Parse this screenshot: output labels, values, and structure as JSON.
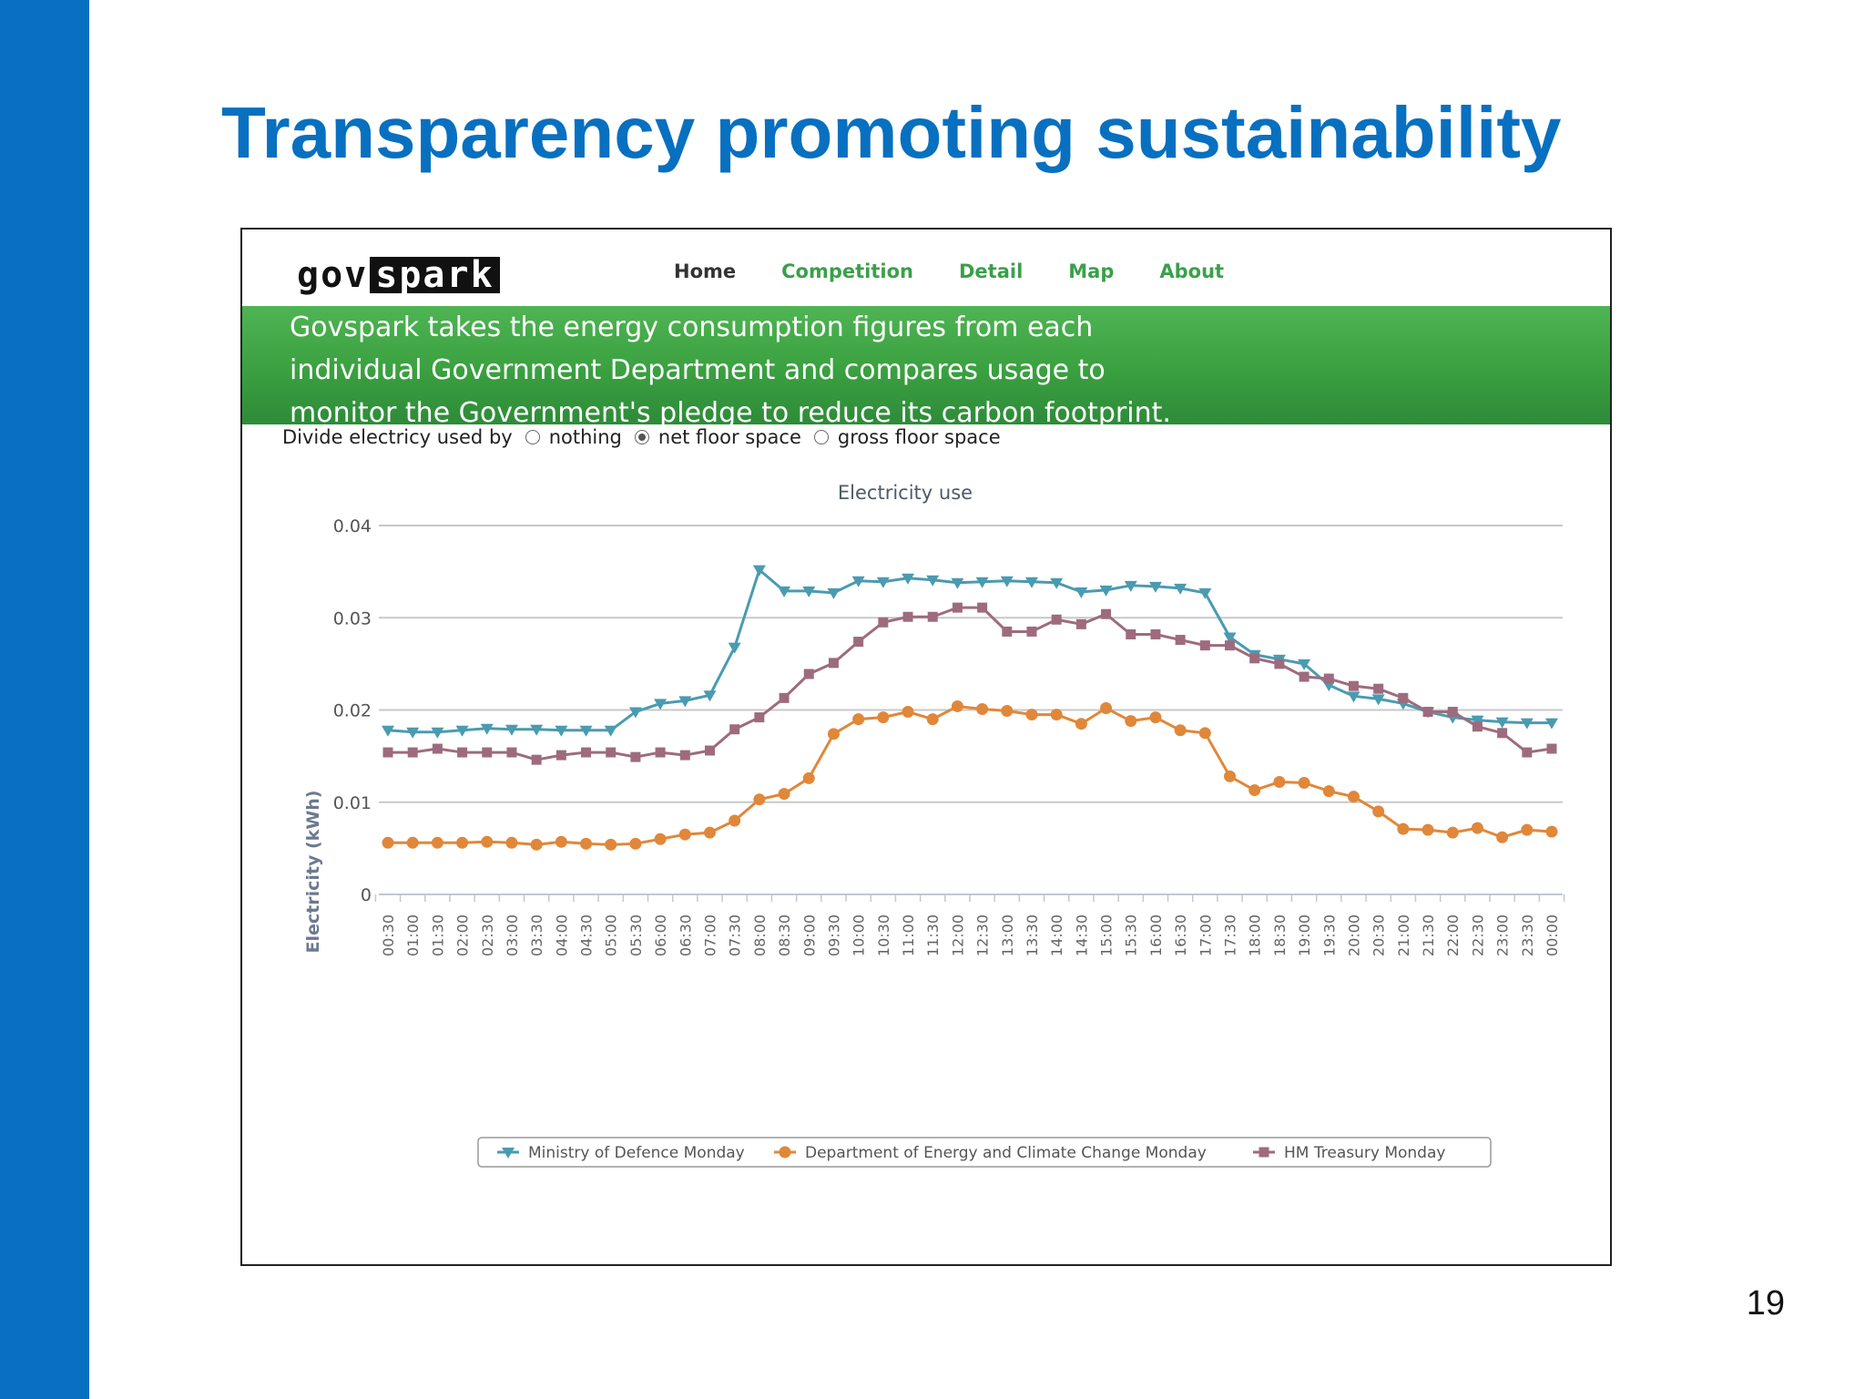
{
  "slide": {
    "title": "Transparency promoting sustainability",
    "page_number": "19"
  },
  "logo": {
    "part1": "gov",
    "part2": "spark"
  },
  "nav": [
    {
      "label": "Home",
      "active": true
    },
    {
      "label": "Competition",
      "active": false
    },
    {
      "label": "Detail",
      "active": false
    },
    {
      "label": "Map",
      "active": false
    },
    {
      "label": "About",
      "active": false
    }
  ],
  "banner": {
    "lines": [
      "Govspark takes the energy consumption figures from each",
      "individual Government Department and compares usage to",
      "monitor the Government's pledge to reduce its carbon footprint."
    ]
  },
  "divide": {
    "label": "Divide electricy used by",
    "options": [
      {
        "label": "nothing",
        "checked": false
      },
      {
        "label": "net floor space",
        "checked": true
      },
      {
        "label": "gross floor space",
        "checked": false
      }
    ]
  },
  "chart_data": {
    "type": "line",
    "title": "Electricity use",
    "xlabel": "",
    "ylabel": "Electricity (kWh)",
    "ylim": [
      0,
      0.04
    ],
    "yticks": [
      {
        "value": 0,
        "label": "0"
      },
      {
        "value": 0.01,
        "label": "0.01"
      },
      {
        "value": 0.02,
        "label": "0.02"
      },
      {
        "value": 0.03,
        "label": "0.03"
      },
      {
        "value": 0.04,
        "label": "0.04"
      }
    ],
    "grid": true,
    "legend_position": "bottom",
    "x": [
      "00:30",
      "01:00",
      "01:30",
      "02:00",
      "02:30",
      "03:00",
      "03:30",
      "04:00",
      "04:30",
      "05:00",
      "05:30",
      "06:00",
      "06:30",
      "07:00",
      "07:30",
      "08:00",
      "08:30",
      "09:00",
      "09:30",
      "10:00",
      "10:30",
      "11:00",
      "11:30",
      "12:00",
      "12:30",
      "13:00",
      "13:30",
      "14:00",
      "14:30",
      "15:00",
      "15:30",
      "16:00",
      "16:30",
      "17:00",
      "17:30",
      "18:00",
      "18:30",
      "19:00",
      "19:30",
      "20:00",
      "20:30",
      "21:00",
      "21:30",
      "22:00",
      "22:30",
      "23:00",
      "23:30",
      "00:00"
    ],
    "series": [
      {
        "name": "Ministry of Defence Monday",
        "color": "#4a9bb0",
        "marker": "triangle-down",
        "values": [
          0.0178,
          0.0176,
          0.0176,
          0.0178,
          0.018,
          0.0179,
          0.0179,
          0.0178,
          0.0178,
          0.0178,
          0.0198,
          0.0207,
          0.021,
          0.0216,
          0.0268,
          0.0352,
          0.0329,
          0.0329,
          0.0327,
          0.034,
          0.0339,
          0.0343,
          0.0341,
          0.0338,
          0.0339,
          0.034,
          0.0339,
          0.0338,
          0.0328,
          0.033,
          0.0335,
          0.0334,
          0.0332,
          0.0327,
          0.0279,
          0.026,
          0.0255,
          0.025,
          0.0227,
          0.0215,
          0.0212,
          0.0207,
          0.0198,
          0.0192,
          0.0189,
          0.0187,
          0.0186,
          0.0186
        ]
      },
      {
        "name": "Department of Energy and Climate Change Monday",
        "color": "#e0873a",
        "marker": "circle",
        "values": [
          0.0056,
          0.0056,
          0.0056,
          0.0056,
          0.0057,
          0.0056,
          0.0054,
          0.0057,
          0.0055,
          0.0054,
          0.0055,
          0.006,
          0.0065,
          0.0067,
          0.008,
          0.0103,
          0.0109,
          0.0126,
          0.0174,
          0.019,
          0.0192,
          0.0198,
          0.019,
          0.0204,
          0.0201,
          0.0199,
          0.0195,
          0.0195,
          0.0185,
          0.0202,
          0.0188,
          0.0192,
          0.0178,
          0.0175,
          0.0128,
          0.0113,
          0.0122,
          0.0121,
          0.0112,
          0.0106,
          0.009,
          0.0071,
          0.007,
          0.0067,
          0.0072,
          0.0062,
          0.007,
          0.0068
        ]
      },
      {
        "name": "HM Treasury Monday",
        "color": "#9e6b7e",
        "marker": "square",
        "values": [
          0.0154,
          0.0154,
          0.0158,
          0.0154,
          0.0154,
          0.0154,
          0.0146,
          0.0151,
          0.0154,
          0.0154,
          0.0149,
          0.0154,
          0.0151,
          0.0156,
          0.0179,
          0.0192,
          0.0213,
          0.0239,
          0.0251,
          0.0274,
          0.0295,
          0.0301,
          0.0301,
          0.0311,
          0.0311,
          0.0285,
          0.0285,
          0.0298,
          0.0293,
          0.0304,
          0.0282,
          0.0282,
          0.0276,
          0.027,
          0.027,
          0.0256,
          0.025,
          0.0236,
          0.0234,
          0.0226,
          0.0223,
          0.0213,
          0.0198,
          0.0198,
          0.0182,
          0.0175,
          0.0154,
          0.0158
        ]
      }
    ]
  }
}
